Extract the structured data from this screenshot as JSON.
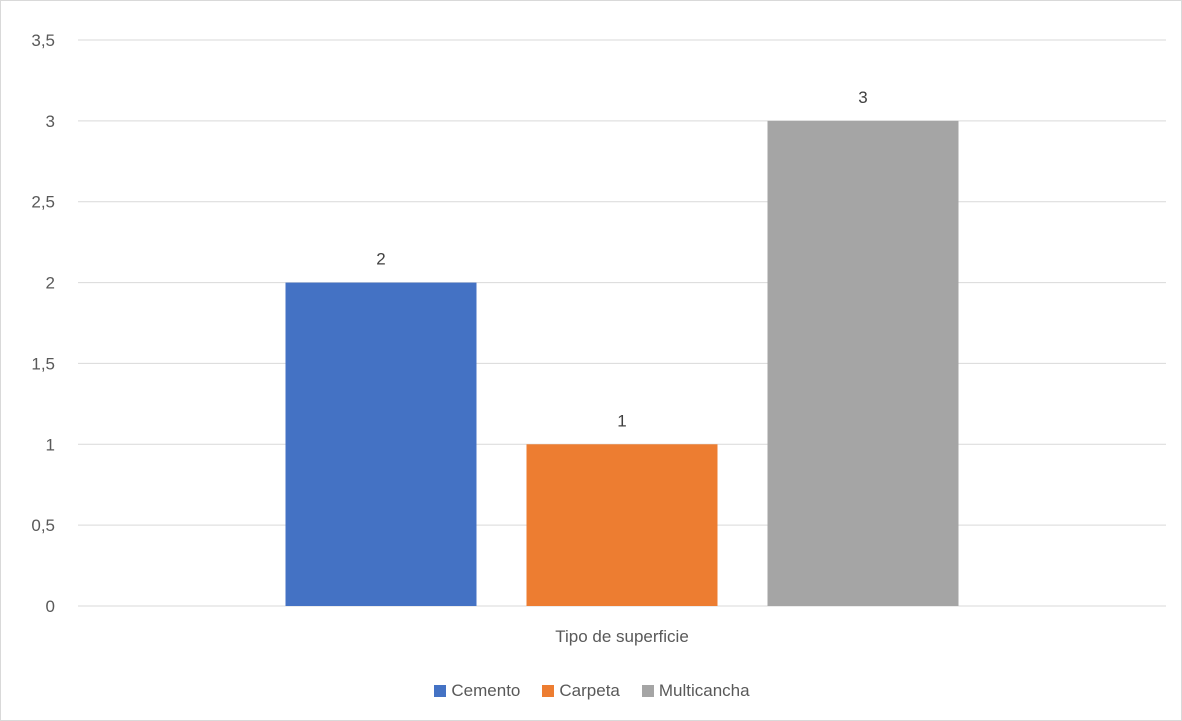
{
  "chart_data": {
    "type": "bar",
    "title": "",
    "xlabel": "Tipo de superficie",
    "ylabel": "",
    "ylim": [
      0,
      3.5
    ],
    "ytick_step": 0.5,
    "ytick_labels": [
      "0",
      "0,5",
      "1",
      "1,5",
      "2",
      "2,5",
      "3",
      "3,5"
    ],
    "grid": true,
    "legend_position": "bottom",
    "categories": [
      "Tipo de superficie"
    ],
    "series": [
      {
        "name": "Cemento",
        "values": [
          2
        ],
        "color": "#4472C4"
      },
      {
        "name": "Carpeta",
        "values": [
          1
        ],
        "color": "#ED7D31"
      },
      {
        "name": "Multicancha",
        "values": [
          3
        ],
        "color": "#A5A5A5"
      }
    ],
    "data_labels": [
      "2",
      "1",
      "3"
    ]
  }
}
